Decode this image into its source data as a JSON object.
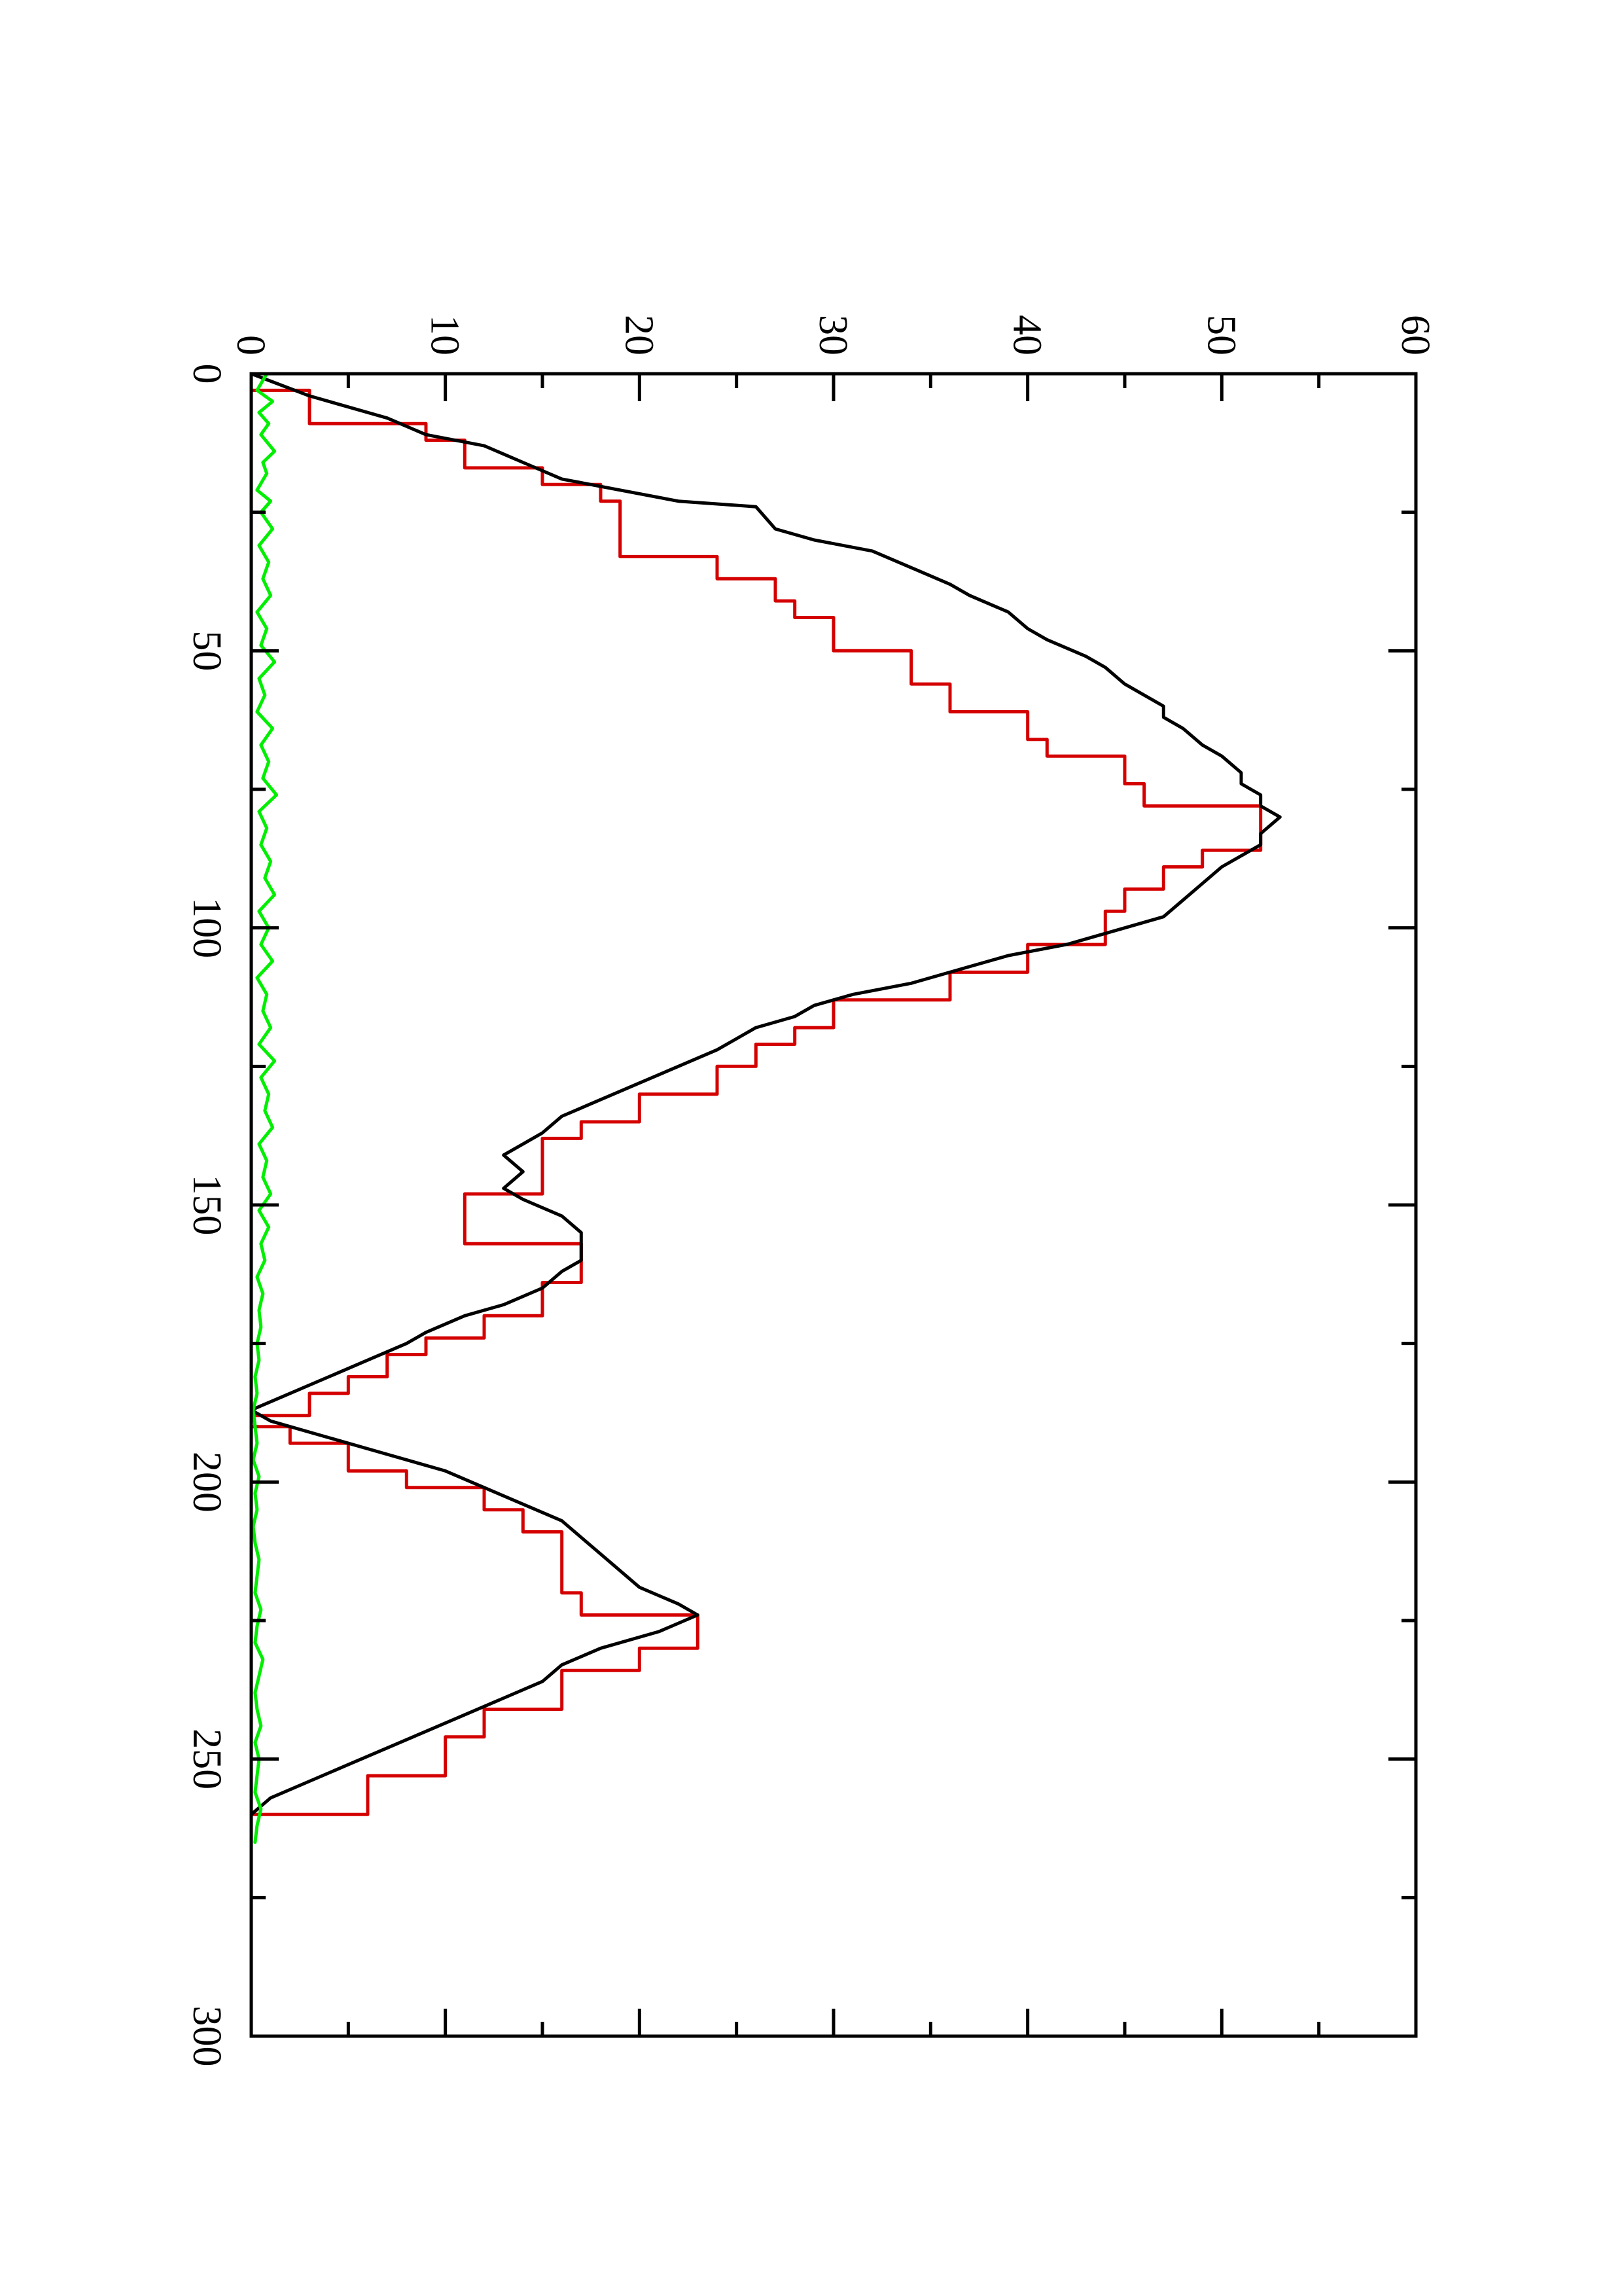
{
  "chart_data": {
    "type": "line",
    "title": "",
    "xlabel": "",
    "ylabel": "",
    "orientation": "rotated-90-ccw",
    "xlim": [
      0,
      300
    ],
    "ylim": [
      0,
      60
    ],
    "x_ticks": [
      0,
      50,
      100,
      150,
      200,
      250,
      300
    ],
    "x_tick_labels": [
      "0",
      "50",
      "100",
      "150",
      "200",
      "250",
      "300"
    ],
    "x_minor_ticks": [
      25,
      75,
      125,
      175,
      225,
      275
    ],
    "y_ticks": [
      0,
      10,
      20,
      30,
      40,
      50,
      60
    ],
    "y_tick_labels": [
      "0",
      "10",
      "20",
      "30",
      "40",
      "50",
      "60"
    ],
    "y_minor_ticks": [
      5,
      15,
      25,
      35,
      45,
      55
    ],
    "grid": false,
    "legend": "none",
    "series": [
      {
        "color": "#d40000",
        "step": true,
        "x": [
          0,
          3,
          9,
          12,
          17,
          20,
          23,
          30,
          33,
          37,
          41,
          44,
          50,
          56,
          61,
          66,
          69,
          74,
          78,
          86,
          89,
          93,
          97,
          103,
          108,
          113,
          118,
          121,
          125,
          130,
          135,
          138,
          148,
          157,
          164,
          170,
          174,
          177,
          181,
          184,
          188,
          190,
          193,
          198,
          201,
          205,
          209,
          216,
          220,
          224,
          230,
          234,
          241,
          246,
          253,
          260
        ],
        "y": [
          0,
          3,
          9,
          11,
          15,
          18,
          19,
          19,
          24,
          27,
          28,
          30,
          34,
          36,
          40,
          41,
          45,
          46,
          52,
          49,
          47,
          45,
          44,
          40,
          36,
          30,
          28,
          26,
          24,
          20,
          17,
          15,
          11,
          17,
          15,
          12,
          9,
          7,
          5,
          3,
          0,
          2,
          5,
          8,
          12,
          14,
          16,
          16,
          17,
          23,
          20,
          16,
          12,
          10,
          6,
          0
        ]
      },
      {
        "color": "#000000",
        "x": [
          0,
          4,
          8,
          11,
          13,
          16,
          19,
          21,
          23,
          24,
          28,
          30,
          32,
          35,
          38,
          40,
          43,
          46,
          48,
          51,
          53,
          56,
          58,
          60,
          62,
          64,
          67,
          69,
          72,
          74,
          76,
          78,
          80,
          83,
          85,
          87,
          89,
          92,
          95,
          98,
          100,
          103,
          105,
          107,
          110,
          112,
          114,
          116,
          118,
          120,
          122,
          125,
          128,
          131,
          134,
          137,
          139,
          141,
          144,
          147,
          149,
          152,
          155,
          158,
          160,
          162,
          165,
          168,
          170,
          173,
          175,
          178,
          181,
          184,
          187,
          189,
          192,
          195,
          198,
          201,
          204,
          207,
          210,
          213,
          216,
          219,
          222,
          224,
          227,
          230,
          233,
          236,
          239,
          242,
          245,
          248,
          251,
          254,
          257,
          260,
          263
        ],
        "y": [
          0,
          3,
          7,
          9,
          12,
          14,
          16,
          19,
          22,
          26,
          27,
          29,
          32,
          34,
          36,
          37,
          39,
          40,
          41,
          43,
          44,
          45,
          46,
          47,
          47,
          48,
          49,
          50,
          51,
          51,
          52,
          52,
          53,
          52,
          52,
          51,
          50,
          49,
          48,
          47,
          45,
          42,
          39,
          37,
          34,
          31,
          29,
          28,
          26,
          25,
          24,
          22,
          20,
          18,
          16,
          15,
          14,
          13,
          14,
          13,
          14,
          16,
          17,
          17,
          17,
          16,
          15,
          13,
          11,
          9,
          8,
          6,
          4,
          2,
          0,
          1,
          4,
          7,
          10,
          12,
          14,
          16,
          17,
          18,
          19,
          20,
          22,
          23,
          21,
          18,
          16,
          15,
          13,
          11,
          9,
          7,
          5,
          3,
          1,
          0,
          0
        ]
      },
      {
        "color": "#00ee00",
        "x": [
          0,
          3,
          5,
          7,
          9,
          11,
          14,
          16,
          18,
          21,
          23,
          25,
          28,
          31,
          34,
          37,
          40,
          43,
          46,
          49,
          52,
          55,
          58,
          61,
          64,
          67,
          70,
          73,
          76,
          79,
          82,
          85,
          88,
          91,
          94,
          97,
          100,
          103,
          106,
          109,
          112,
          115,
          118,
          121,
          124,
          127,
          130,
          133,
          136,
          139,
          142,
          145,
          148,
          151,
          154,
          157,
          160,
          163,
          166,
          169,
          172,
          175,
          178,
          181,
          184,
          187,
          190,
          193,
          196,
          199,
          202,
          205,
          208,
          211,
          214,
          217,
          220,
          223,
          226,
          229,
          232,
          235,
          238,
          241,
          244,
          247,
          250,
          253,
          256,
          259,
          262,
          265
        ],
        "y": [
          0.8,
          0.3,
          1.1,
          0.4,
          0.9,
          0.5,
          1.2,
          0.6,
          0.8,
          0.3,
          1.0,
          0.5,
          1.1,
          0.4,
          0.9,
          0.6,
          1.0,
          0.3,
          0.8,
          0.5,
          1.2,
          0.4,
          0.7,
          0.3,
          1.1,
          0.5,
          0.9,
          0.6,
          1.3,
          0.4,
          0.8,
          0.5,
          1.0,
          0.7,
          1.2,
          0.4,
          0.9,
          0.5,
          1.1,
          0.3,
          0.8,
          0.6,
          1.0,
          0.4,
          1.2,
          0.5,
          0.9,
          0.7,
          1.1,
          0.4,
          0.8,
          0.6,
          1.0,
          0.4,
          0.9,
          0.5,
          0.7,
          0.3,
          0.6,
          0.4,
          0.5,
          0.3,
          0.4,
          0.2,
          0.3,
          0.1,
          0.2,
          0.3,
          0.1,
          0.4,
          0.2,
          0.3,
          0.1,
          0.2,
          0.4,
          0.3,
          0.2,
          0.5,
          0.3,
          0.2,
          0.6,
          0.4,
          0.2,
          0.3,
          0.5,
          0.2,
          0.4,
          0.3,
          0.2,
          0.5,
          0.3,
          0.2
        ]
      }
    ]
  }
}
